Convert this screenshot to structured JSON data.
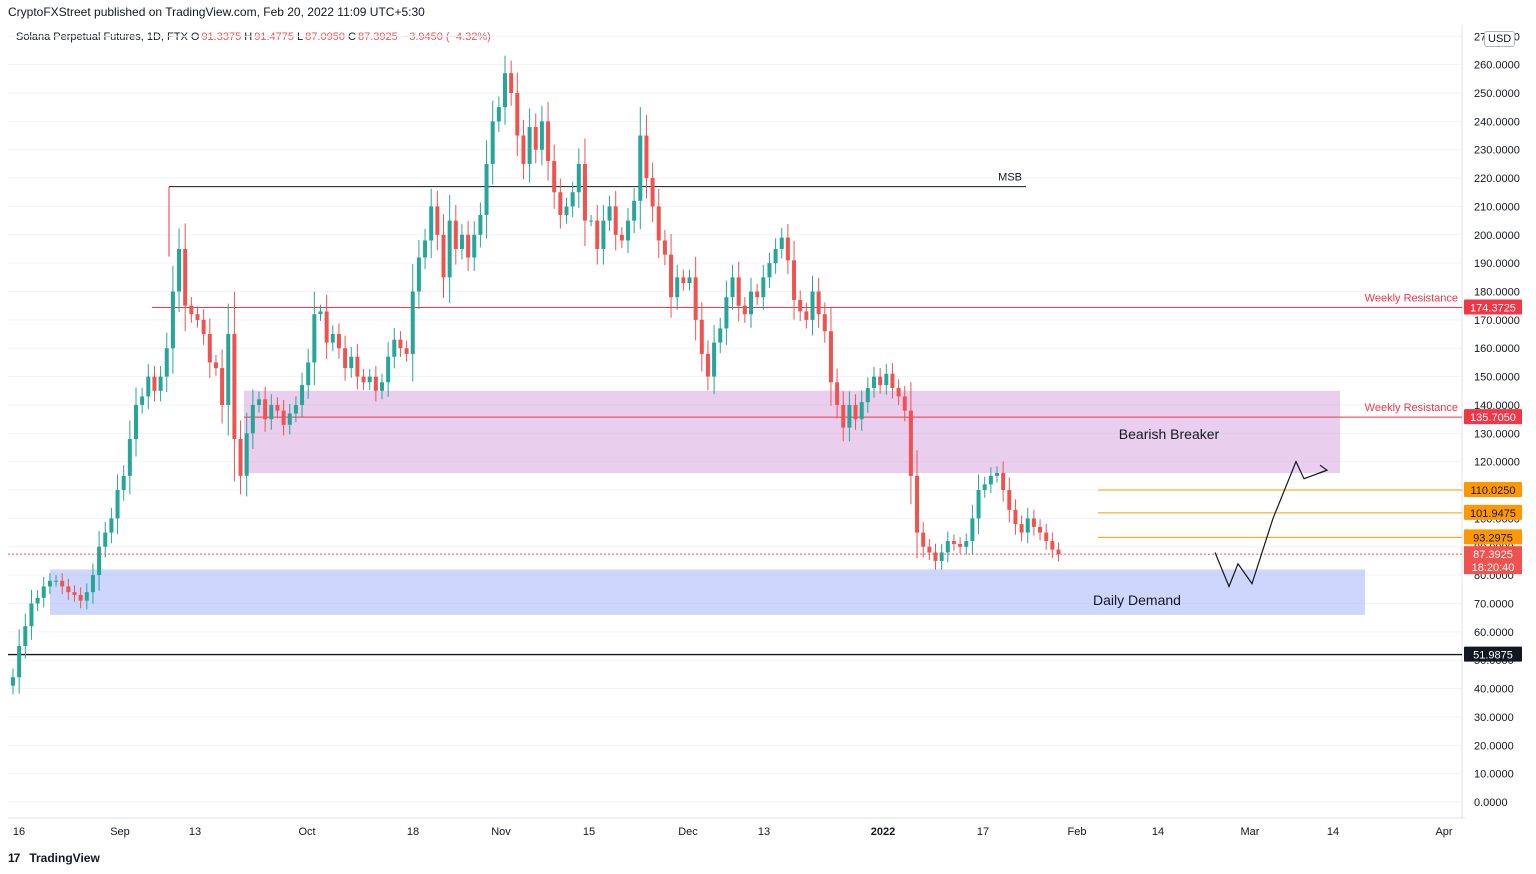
{
  "header": {
    "published_by": "CryptoFXStreet published on TradingView.com, Feb 20, 2022 11:09 UTC+5:30"
  },
  "legend": {
    "symbol": "Solana Perpetual Futures, 1D, FTX",
    "open_label": "O",
    "open": "91.3375",
    "high_label": "H",
    "high": "91.4775",
    "low_label": "L",
    "low": "87.0950",
    "close_label": "C",
    "close": "87.3925",
    "change": "−3.9450 (−4.32%)"
  },
  "currency_badge": "USD",
  "footer": {
    "brand": "TradingView",
    "icon": "tradingview-logo-icon"
  },
  "colors": {
    "up": "#26a69a",
    "down": "#ef5350",
    "resistance": "#f23645",
    "breaker_zone": "#ce93d8",
    "demand_zone": "#90a4f9",
    "level_orange": "#ff9800"
  },
  "chart_data": {
    "type": "candlestick",
    "instrument": "Solana Perpetual Futures",
    "timeframe": "1D",
    "exchange": "FTX",
    "ylim": [
      0,
      270
    ],
    "y_ticks": [
      "0.0000",
      "10.0000",
      "20.0000",
      "30.0000",
      "40.0000",
      "50.0000",
      "60.0000",
      "70.0000",
      "80.0000",
      "90.0000",
      "100.0000",
      "110.0000",
      "120.0000",
      "130.0000",
      "140.0000",
      "150.0000",
      "160.0000",
      "170.0000",
      "180.0000",
      "190.0000",
      "200.0000",
      "210.0000",
      "220.0000",
      "230.0000",
      "240.0000",
      "250.0000",
      "260.0000",
      "270.0000"
    ],
    "x_ticks": [
      {
        "label": "16",
        "bold": false
      },
      {
        "label": "Sep",
        "bold": false
      },
      {
        "label": "13",
        "bold": false
      },
      {
        "label": "Oct",
        "bold": false
      },
      {
        "label": "18",
        "bold": false
      },
      {
        "label": "Nov",
        "bold": false
      },
      {
        "label": "15",
        "bold": false
      },
      {
        "label": "Dec",
        "bold": false
      },
      {
        "label": "13",
        "bold": false
      },
      {
        "label": "2022",
        "bold": true
      },
      {
        "label": "17",
        "bold": false
      },
      {
        "label": "Feb",
        "bold": false
      },
      {
        "label": "14",
        "bold": false
      },
      {
        "label": "Mar",
        "bold": false
      },
      {
        "label": "14",
        "bold": false
      },
      {
        "label": "Apr",
        "bold": false
      }
    ],
    "closes": [
      44,
      55,
      62,
      70,
      72,
      76,
      78,
      78,
      76,
      74,
      73,
      71,
      74,
      80,
      90,
      95,
      100,
      110,
      115,
      128,
      140,
      143,
      150,
      145,
      150,
      160,
      180,
      195,
      175,
      172,
      170,
      165,
      155,
      153,
      140,
      165,
      128,
      115,
      130,
      140,
      142,
      135,
      140,
      138,
      133,
      137,
      140,
      147,
      155,
      172,
      173,
      162,
      165,
      160,
      153,
      157,
      150,
      148,
      150,
      145,
      148,
      157,
      163,
      160,
      158,
      180,
      192,
      198,
      210,
      200,
      185,
      205,
      195,
      200,
      192,
      200,
      207,
      225,
      240,
      245,
      257,
      250,
      235,
      225,
      238,
      230,
      240,
      226,
      215,
      207,
      210,
      215,
      225,
      205,
      205,
      195,
      205,
      210,
      200,
      198,
      205,
      212,
      235,
      220,
      210,
      198,
      193,
      178,
      185,
      183,
      185,
      170,
      158,
      150,
      162,
      167,
      178,
      185,
      175,
      172,
      180,
      178,
      185,
      190,
      195,
      199,
      191,
      177,
      173,
      170,
      180,
      172,
      166,
      148,
      140,
      132,
      140,
      135,
      141,
      146,
      150,
      147,
      151,
      146,
      143,
      138,
      115,
      95,
      90,
      88,
      85,
      88,
      92,
      91,
      90,
      92,
      100,
      110,
      112,
      115,
      116,
      110,
      103,
      98,
      95,
      100,
      97,
      95,
      92,
      89,
      87.3925
    ],
    "last_price": 87.3925,
    "countdown": "18:20:40",
    "levels": [
      {
        "label": "MSB",
        "value": 217
      },
      {
        "label": "Weekly Resistance",
        "value": 174.3725,
        "tag": "174.3725"
      },
      {
        "label": "Weekly Resistance",
        "value": 135.705,
        "tag": "135.7050"
      },
      {
        "label": "",
        "value": 110.025,
        "tag": "110.0250"
      },
      {
        "label": "",
        "value": 101.9475,
        "tag": "101.9475"
      },
      {
        "label": "",
        "value": 93.2975,
        "tag": "93.2975"
      },
      {
        "label": "",
        "value": 51.9875,
        "tag": "51.9875"
      }
    ],
    "zones": [
      {
        "label": "Bearish Breaker",
        "from": 116,
        "to": 145
      },
      {
        "label": "Daily Demand",
        "from": 66,
        "to": 82
      }
    ],
    "projection": [
      {
        "x": 0,
        "y": 88
      },
      {
        "x": 1,
        "y": 76
      },
      {
        "x": 2,
        "y": 84
      },
      {
        "x": 3,
        "y": 77
      },
      {
        "x": 4,
        "y": 100
      },
      {
        "x": 5,
        "y": 120
      },
      {
        "x": 6,
        "y": 114
      },
      {
        "x": 7,
        "y": 117
      }
    ]
  }
}
